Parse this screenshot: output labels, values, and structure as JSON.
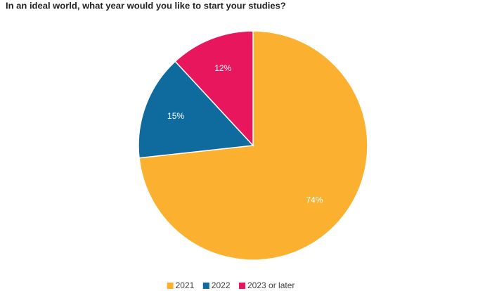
{
  "chart_data": {
    "type": "pie",
    "title": "In an ideal world, what year would you like to start your studies?",
    "categories": [
      "2021",
      "2022",
      "2023 or later"
    ],
    "values": [
      74,
      15,
      12
    ],
    "value_labels": [
      "74%",
      "15%",
      "12%"
    ],
    "colors": [
      "#fbb12f",
      "#0f6a9e",
      "#e8175d"
    ],
    "legend": "bottom"
  }
}
